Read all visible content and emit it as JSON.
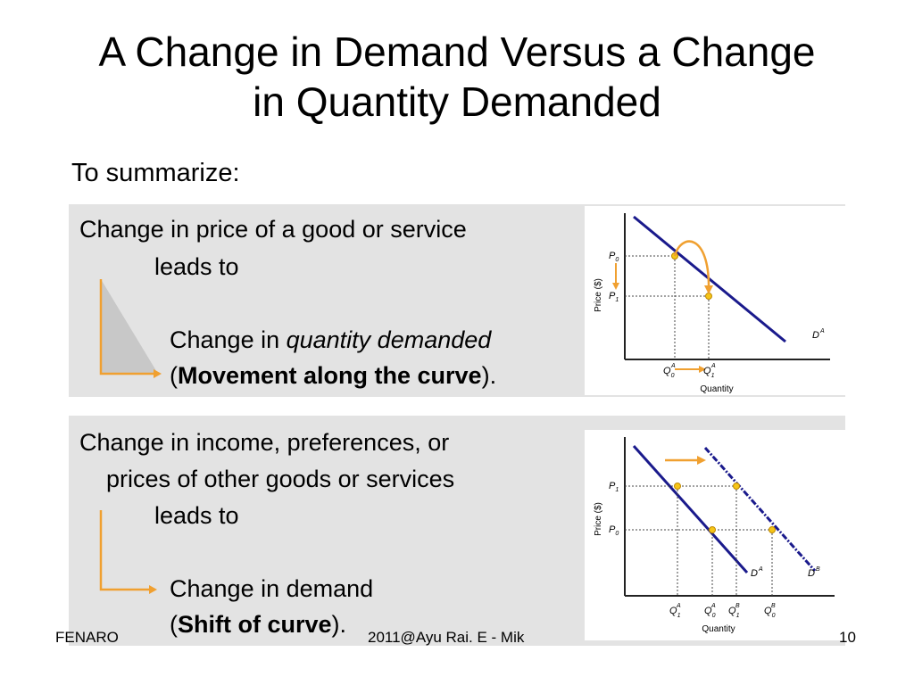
{
  "title": {
    "line1": "A Change in Demand Versus a Change",
    "line2": "in Quantity Demanded"
  },
  "intro": "To summarize:",
  "panel1": {
    "line1": "Change in price of a good or service",
    "line2": "leads to",
    "line3_prefix": "Change in ",
    "line3_em": "quantity demanded",
    "line4_open": "(",
    "line4_bold": "Movement along the curve",
    "line4_close": ")."
  },
  "panel2": {
    "line1": "Change in income, preferences, or",
    "line2": "prices of other goods or services",
    "line3": "leads to",
    "line4": "Change in demand",
    "line5_open": "(",
    "line5_bold": "Shift of curve",
    "line5_close": ")."
  },
  "graph1": {
    "y_axis_label": "Price ($)",
    "x_axis_label": "Quantity",
    "p_upper": "P",
    "p_upper_sub": "0",
    "p_lower": "P",
    "p_lower_sub": "1",
    "q_left": "Q",
    "q_left_sup": "A",
    "q_left_sub": "0",
    "q_right": "Q",
    "q_right_sup": "A",
    "q_right_sub": "1",
    "curve_label": "D",
    "curve_sup": "A"
  },
  "graph2": {
    "y_axis_label": "Price ($)",
    "x_axis_label": "Quantity",
    "p_upper": "P",
    "p_upper_sub": "1",
    "p_lower": "P",
    "p_lower_sub": "0",
    "q1": "Q",
    "q1_sup": "A",
    "q1_sub": "1",
    "q2": "Q",
    "q2_sup": "A",
    "q2_sub": "0",
    "q3": "Q",
    "q3_sup": "B",
    "q3_sub": "1",
    "q4": "Q",
    "q4_sup": "B",
    "q4_sub": "0",
    "curve_a": "D",
    "curve_a_sup": "A",
    "curve_b": "D",
    "curve_b_sup": "B"
  },
  "footer": {
    "left": "FENARO",
    "center": "2011@Ayu Rai. E - Mik",
    "right": "10"
  },
  "colors": {
    "curve": "#1a1a8c",
    "arrow": "#f0a030",
    "point": "#f5c518",
    "panel_bg": "#e3e3e3"
  }
}
